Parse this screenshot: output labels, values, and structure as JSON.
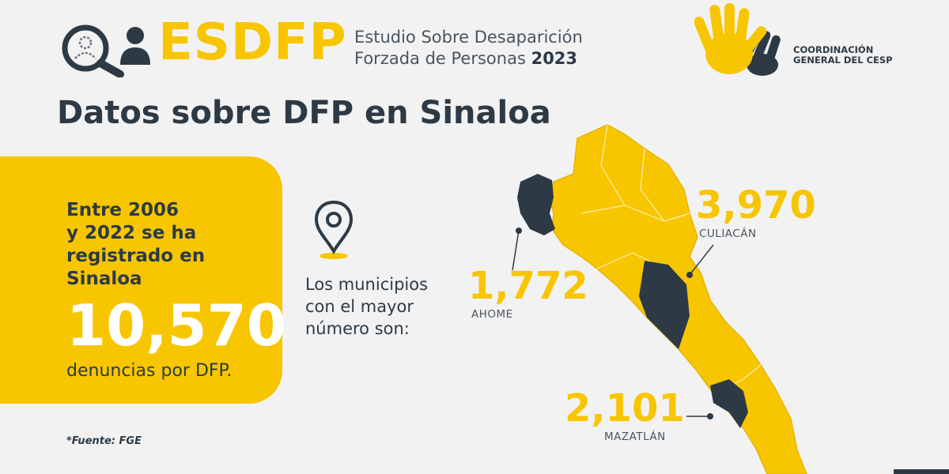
{
  "header": {
    "brand": "ESDFP",
    "subtitle_line1": "Estudio Sobre Desaparición",
    "subtitle_line2": "Forzada de Personas",
    "year": "2023",
    "org_line1": "COORDINACIÓN",
    "org_line2": "GENERAL DEL CESP"
  },
  "title": "Datos sobre DFP en Sinaloa",
  "card": {
    "line1": "Entre 2006",
    "line2": "y 2022 se ha",
    "line3": "registrado en",
    "line4": "Sinaloa",
    "total": "10,570",
    "unit": "denuncias por DFP."
  },
  "source": "*Fuente: FGE",
  "municipios": {
    "line1": "Los municipios",
    "line2": "con el mayor",
    "line3": "número son:"
  },
  "stats": [
    {
      "value": "3,970",
      "label": "CULIACÁN"
    },
    {
      "value": "1,772",
      "label": "AHOME"
    },
    {
      "value": "2,101",
      "label": "MAZATLÁN"
    }
  ],
  "colors": {
    "accent": "#f7c600",
    "dark": "#2d3a45",
    "background": "#f2f2f2"
  },
  "icons": [
    "search-person-icon",
    "person-icon",
    "hands-logo-icon",
    "location-pin-icon"
  ]
}
